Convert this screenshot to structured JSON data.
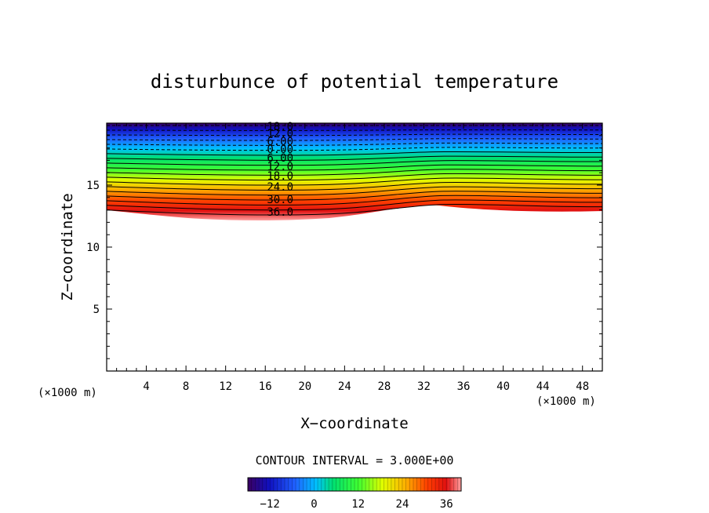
{
  "chart_data": {
    "type": "contour",
    "title": "disturbunce of potential temperature",
    "xlabel": "X−coordinate",
    "ylabel": "Z−coordinate",
    "x_unit_left": "(×1000 m)",
    "x_unit_right": "(×1000 m)",
    "xlim": [
      0,
      50
    ],
    "ylim": [
      0,
      20
    ],
    "x_ticks": [
      4,
      8,
      12,
      16,
      20,
      24,
      28,
      32,
      36,
      40,
      44,
      48
    ],
    "y_ticks": [
      5,
      10,
      15
    ],
    "contour_interval_text": "CONTOUR INTERVAL = 3.000E+00",
    "contour_labels": [
      "18.0",
      "12.0",
      "6.00",
      "0.00",
      "6.00",
      "12.0",
      "18.0",
      "24.0",
      "30.0",
      "36.0"
    ],
    "contour_levels": [
      -18,
      -15,
      -12,
      -9,
      -6,
      -3,
      0,
      3,
      6,
      9,
      12,
      15,
      18,
      21,
      24,
      27,
      30,
      33,
      36
    ],
    "colorbar": {
      "min": -18,
      "max": 40,
      "ticks": [
        -12,
        0,
        12,
        24,
        36
      ],
      "colors": [
        "#3a0060",
        "#1010c0",
        "#2060ff",
        "#00c0ff",
        "#00e070",
        "#40ff30",
        "#e0ff00",
        "#ffb000",
        "#ff4000",
        "#e01010",
        "#ffa0a0"
      ]
    }
  }
}
